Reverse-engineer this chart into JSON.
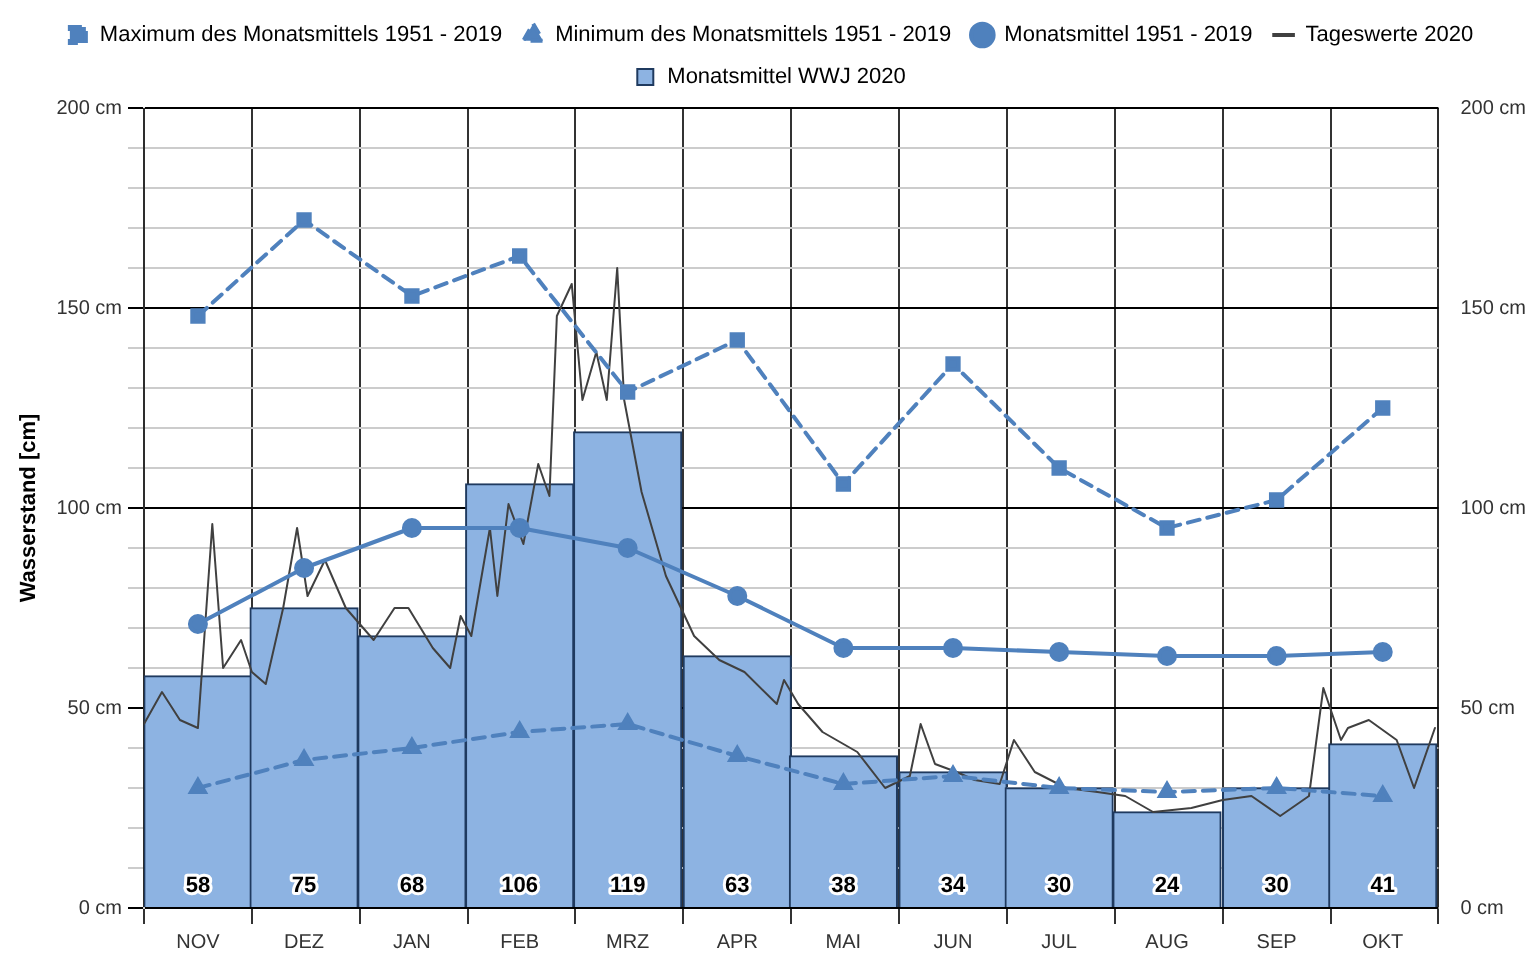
{
  "chart_data": {
    "type": "bar",
    "ylabel": "Wasserstand [cm]",
    "x": [
      "2019-11-16",
      "2019-12-16",
      "2020-01-16",
      "2020-02-15",
      "2020-03-16",
      "2020-04-16",
      "2020-05-16",
      "2020-06-16",
      "2020-07-16",
      "2020-08-16",
      "2020-09-16",
      "2020-10-16"
    ],
    "xlim": [
      "2019-11-01",
      "2020-11-01"
    ],
    "xticks": [
      {
        "value": "2019-11-01",
        "label": null
      },
      {
        "value": "2019-11-16",
        "label": "NOV"
      },
      {
        "value": "2019-12-01",
        "label": null
      },
      {
        "value": "2019-12-16",
        "label": "DEZ"
      },
      {
        "value": "2020-01-01",
        "label": null
      },
      {
        "value": "2020-01-16",
        "label": "JAN"
      },
      {
        "value": "2020-02-01",
        "label": null
      },
      {
        "value": "2020-02-15",
        "label": "FEB"
      },
      {
        "value": "2020-03-01",
        "label": null
      },
      {
        "value": "2020-03-16",
        "label": "MRZ"
      },
      {
        "value": "2020-04-01",
        "label": null
      },
      {
        "value": "2020-04-16",
        "label": "APR"
      },
      {
        "value": "2020-05-01",
        "label": null
      },
      {
        "value": "2020-05-16",
        "label": "MAI"
      },
      {
        "value": "2020-06-01",
        "label": null
      },
      {
        "value": "2020-06-16",
        "label": "JUN"
      },
      {
        "value": "2020-07-01",
        "label": null
      },
      {
        "value": "2020-07-16",
        "label": "JUL"
      },
      {
        "value": "2020-08-01",
        "label": null
      },
      {
        "value": "2020-08-16",
        "label": "AUG"
      },
      {
        "value": "2020-09-01",
        "label": null
      },
      {
        "value": "2020-09-16",
        "label": "SEP"
      },
      {
        "value": "2020-10-01",
        "label": null
      },
      {
        "value": "2020-10-16",
        "label": "OKT"
      },
      {
        "value": "2020-11-01",
        "label": null
      }
    ],
    "series": [
      {
        "name": "Monatsmittel WWJ 2020",
        "type": "bar",
        "color": "#8db3e2",
        "values": [
          58,
          75,
          68,
          106,
          119,
          63,
          38,
          34,
          30,
          24,
          30,
          41
        ],
        "value_labels": [
          "58",
          "75",
          "68",
          "106",
          "119",
          "63",
          "38",
          "34",
          "30",
          "24",
          "30",
          "41"
        ]
      },
      {
        "name": "Maximum des Monatsmittels 1951 - 2019",
        "type": "line",
        "color": "#4f81bd",
        "marker": "square",
        "line_style": "dashed",
        "values": [
          148,
          172,
          153,
          163,
          129,
          142,
          106,
          136,
          110,
          95,
          102,
          125
        ]
      },
      {
        "name": "Minimum des Monatsmittels 1951 - 2019",
        "type": "line",
        "color": "#4f81bd",
        "marker": "triangle",
        "line_style": "dashed",
        "values": [
          30,
          37,
          40,
          44,
          46,
          38,
          31,
          33,
          30,
          29,
          30,
          28
        ]
      },
      {
        "name": "Monatsmittel 1951 - 2019",
        "type": "line",
        "color": "#4f81bd",
        "marker": "circle",
        "line_style": "solid",
        "values": [
          71,
          85,
          95,
          95,
          90,
          78,
          65,
          65,
          64,
          63,
          63,
          64
        ]
      },
      {
        "name": "Tageswerte 2020",
        "type": "line",
        "color": "#404040",
        "marker": "none",
        "line_style": "solid",
        "x": [
          "2019-11-01",
          "2019-11-06",
          "2019-11-11",
          "2019-11-16",
          "2019-11-20",
          "2019-11-23",
          "2019-11-28",
          "2019-12-01",
          "2019-12-05",
          "2019-12-10",
          "2019-12-14",
          "2019-12-17",
          "2019-12-22",
          "2019-12-28",
          "2020-01-05",
          "2020-01-11",
          "2020-01-15",
          "2020-01-22",
          "2020-01-27",
          "2020-01-30",
          "2020-02-02",
          "2020-02-07",
          "2020-02-09",
          "2020-02-12",
          "2020-02-16",
          "2020-02-20",
          "2020-02-23",
          "2020-02-25",
          "2020-02-29",
          "2020-03-03",
          "2020-03-07",
          "2020-03-10",
          "2020-03-13",
          "2020-03-15",
          "2020-03-20",
          "2020-03-27",
          "2020-04-04",
          "2020-04-11",
          "2020-04-18",
          "2020-04-27",
          "2020-04-29",
          "2020-05-03",
          "2020-05-10",
          "2020-05-20",
          "2020-05-28",
          "2020-06-04",
          "2020-06-07",
          "2020-06-11",
          "2020-06-17",
          "2020-06-22",
          "2020-06-29",
          "2020-07-03",
          "2020-07-09",
          "2020-07-18",
          "2020-07-27",
          "2020-08-04",
          "2020-08-12",
          "2020-08-23",
          "2020-09-01",
          "2020-09-09",
          "2020-09-17",
          "2020-09-25",
          "2020-09-29",
          "2020-10-04",
          "2020-10-06",
          "2020-10-12",
          "2020-10-20",
          "2020-10-25",
          "2020-10-31"
        ],
        "values": [
          46,
          54,
          47,
          45,
          96,
          60,
          67,
          59,
          56,
          75,
          95,
          78,
          87,
          75,
          67,
          75,
          75,
          65,
          60,
          73,
          68,
          95,
          78,
          101,
          91,
          111,
          103,
          148,
          156,
          127,
          139,
          127,
          160,
          127,
          104,
          83,
          68,
          62,
          59,
          51,
          57,
          51,
          44,
          39,
          30,
          33,
          46,
          36,
          34,
          32,
          31,
          42,
          34,
          30,
          29,
          28,
          24,
          25,
          27,
          28,
          23,
          28,
          55,
          42,
          45,
          47,
          42,
          30,
          45
        ]
      }
    ],
    "ylim": [
      0,
      200
    ],
    "y2lim": [
      0,
      200
    ],
    "yticks": [
      {
        "value": 0,
        "label": "0 cm"
      },
      {
        "value": 10,
        "label": null
      },
      {
        "value": 20,
        "label": null
      },
      {
        "value": 30,
        "label": null
      },
      {
        "value": 40,
        "label": null
      },
      {
        "value": 50,
        "label": "50 cm"
      },
      {
        "value": 60,
        "label": null
      },
      {
        "value": 70,
        "label": null
      },
      {
        "value": 80,
        "label": null
      },
      {
        "value": 90,
        "label": null
      },
      {
        "value": 100,
        "label": "100 cm"
      },
      {
        "value": 110,
        "label": null
      },
      {
        "value": 120,
        "label": null
      },
      {
        "value": 130,
        "label": null
      },
      {
        "value": 140,
        "label": null
      },
      {
        "value": 150,
        "label": "150 cm"
      },
      {
        "value": 160,
        "label": null
      },
      {
        "value": 170,
        "label": null
      },
      {
        "value": 180,
        "label": null
      },
      {
        "value": 190,
        "label": null
      },
      {
        "value": 200,
        "label": "200 cm"
      }
    ],
    "y2ticks": [
      {
        "value": 0,
        "label": "0 cm"
      },
      {
        "value": 50,
        "label": "50 cm"
      },
      {
        "value": 100,
        "label": "100 cm"
      },
      {
        "value": 150,
        "label": "150 cm"
      },
      {
        "value": 200,
        "label": "200 cm"
      }
    ],
    "grid": true,
    "legend": "top"
  }
}
